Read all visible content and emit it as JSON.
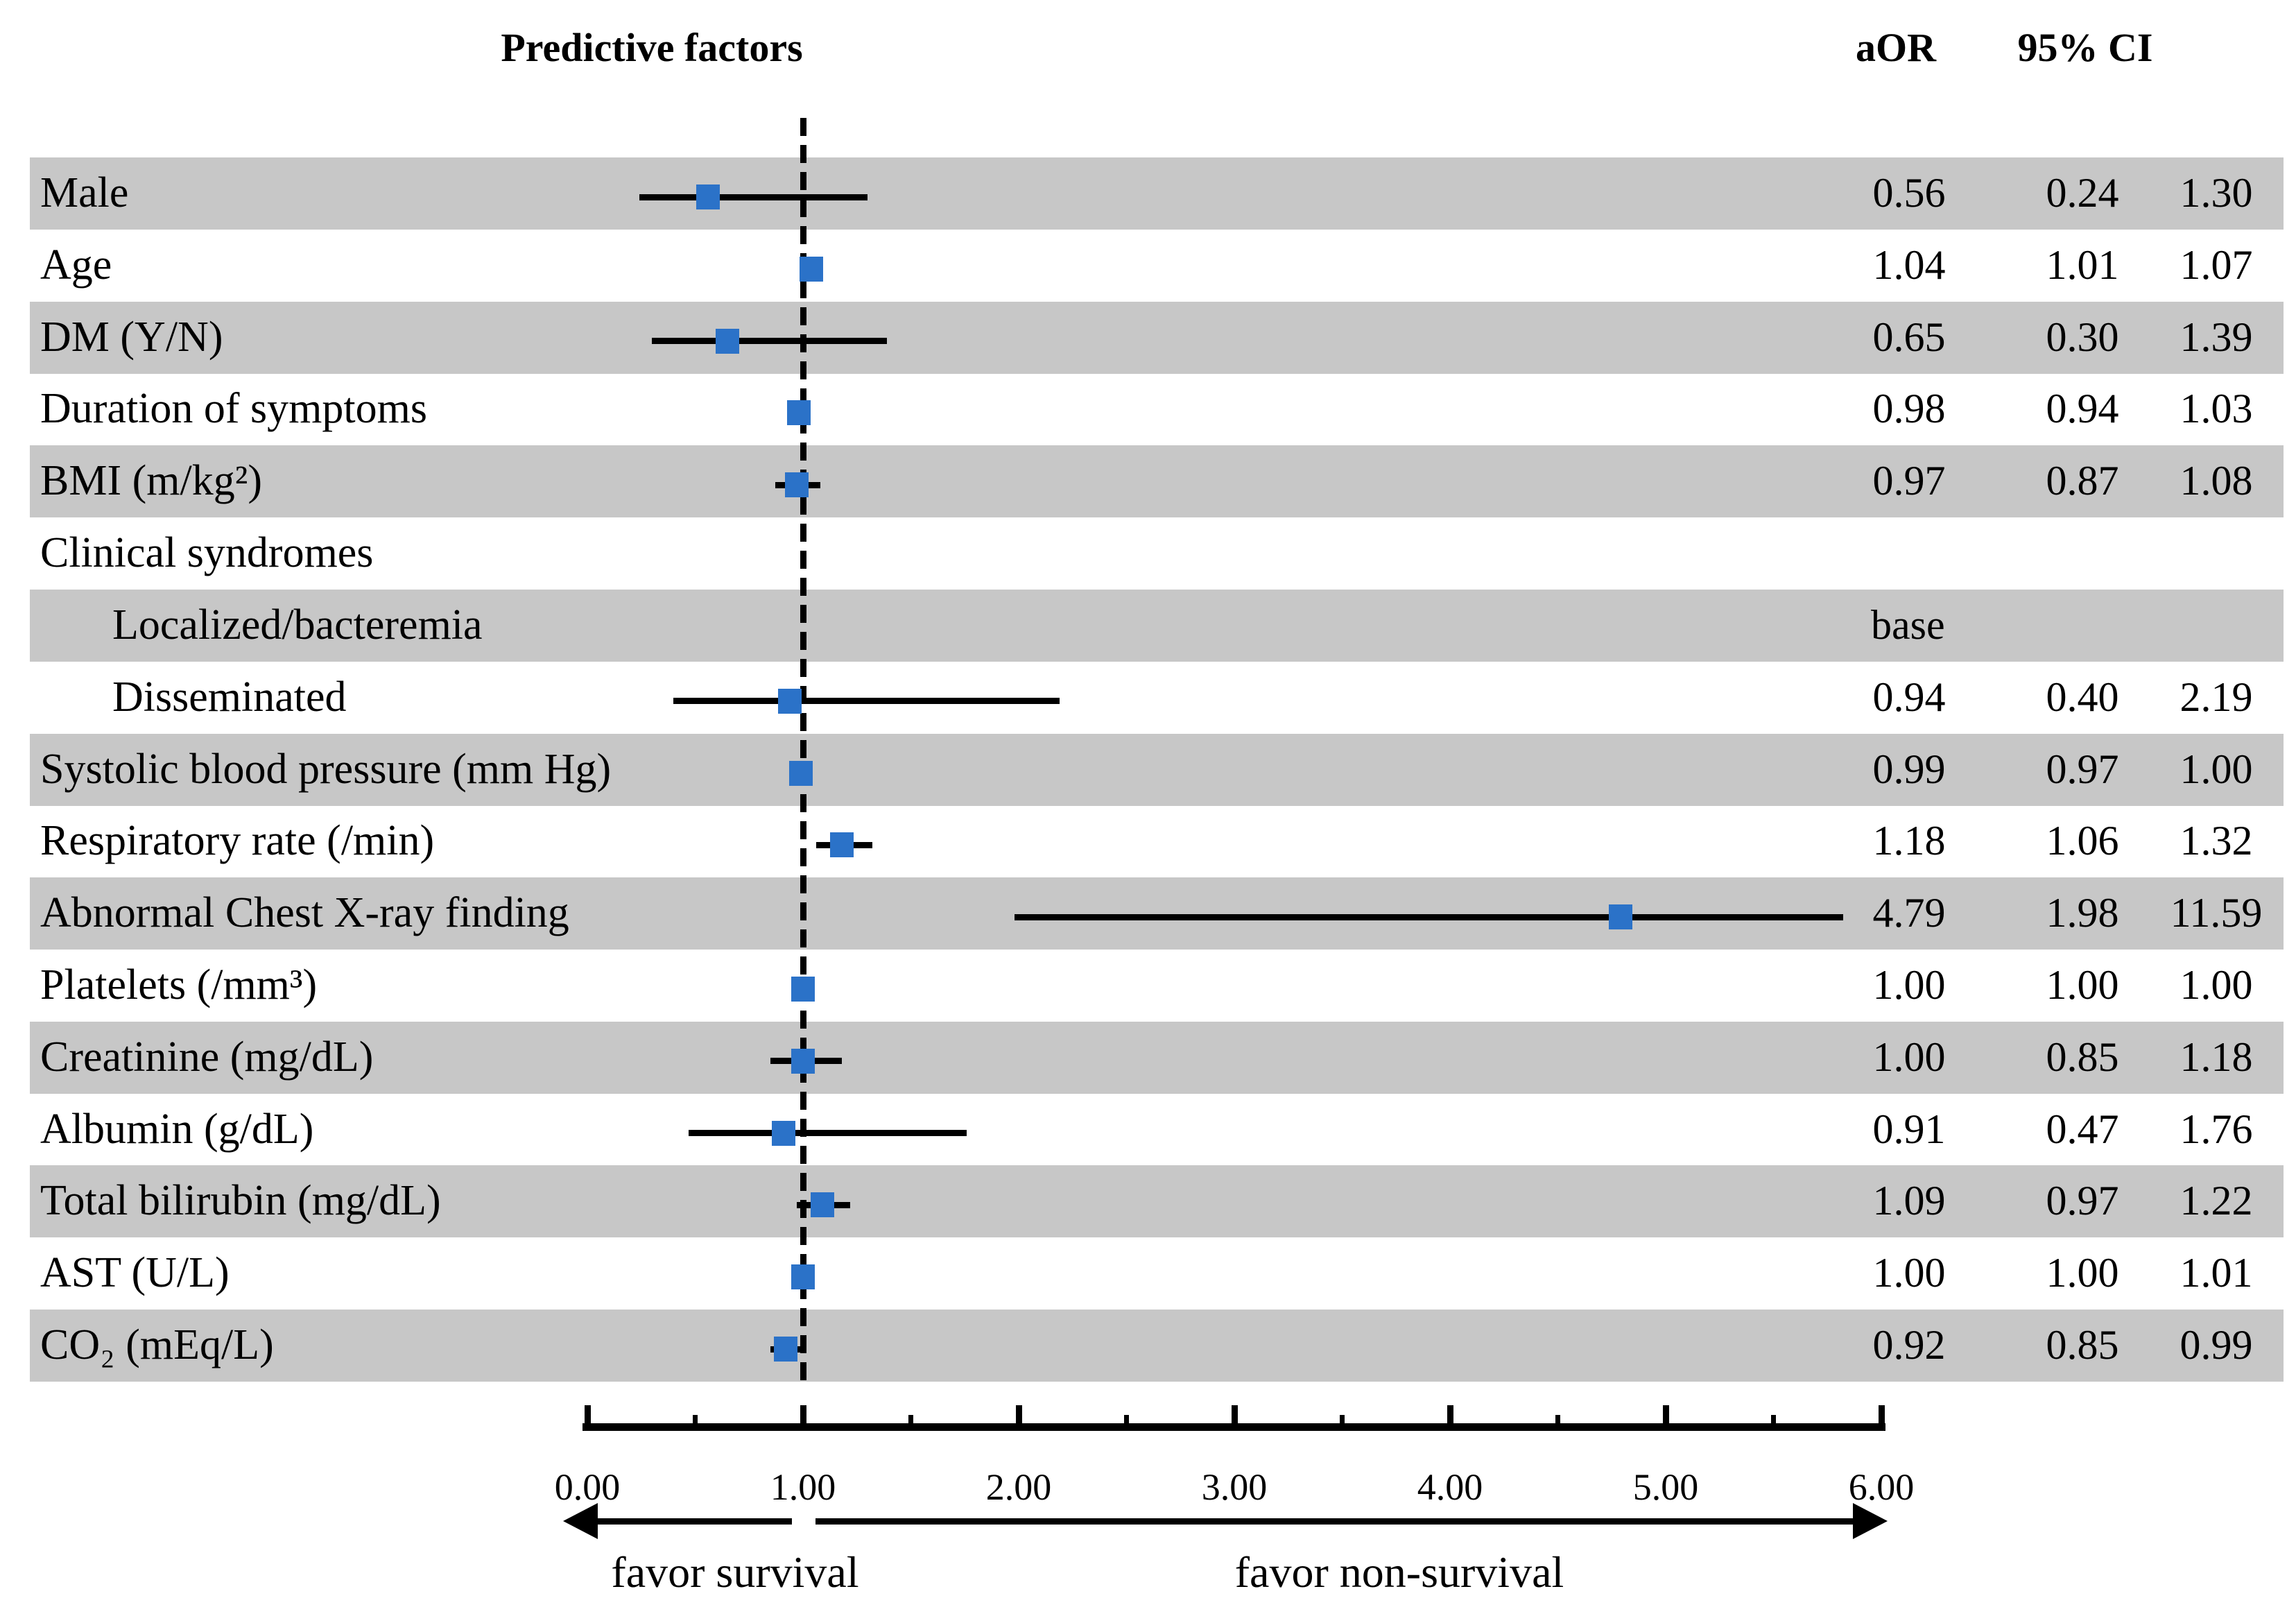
{
  "title": "Predictive factors",
  "columns": {
    "aor": "aOR",
    "ci": "95% CI"
  },
  "footer": {
    "left_arrow_label": "favor survival",
    "right_arrow_label": "favor non-survival"
  },
  "colors": {
    "band_gray": "#c7c7c7",
    "marker_blue": "#2b72c8",
    "line_black": "#000000"
  },
  "chart_data": {
    "type": "scatter",
    "variant": "forest-plot",
    "title": "Predictive factors",
    "xlabel": "",
    "ylabel": "",
    "legend": "none",
    "grid": false,
    "x_axis": {
      "min": 0,
      "max": 6,
      "tick_labels": [
        "0.00",
        "1.00",
        "2.00",
        "3.00",
        "4.00",
        "5.00",
        "6.00"
      ],
      "minor_tick_step": 0.5,
      "reference_line": 1.0
    },
    "rows": [
      {
        "label": "Male",
        "indent": false,
        "shaded": true,
        "aor_text": "0.56",
        "low_text": "0.24",
        "high_text": "1.30",
        "est": 0.56,
        "low": 0.24,
        "high": 1.3
      },
      {
        "label": "Age",
        "indent": false,
        "shaded": false,
        "aor_text": "1.04",
        "low_text": "1.01",
        "high_text": "1.07",
        "est": 1.04,
        "low": 1.01,
        "high": 1.07
      },
      {
        "label": "DM (Y/N)",
        "indent": false,
        "shaded": true,
        "aor_text": "0.65",
        "low_text": "0.30",
        "high_text": "1.39",
        "est": 0.65,
        "low": 0.3,
        "high": 1.39
      },
      {
        "label": "Duration of symptoms",
        "indent": false,
        "shaded": false,
        "aor_text": "0.98",
        "low_text": "0.94",
        "high_text": "1.03",
        "est": 0.98,
        "low": 0.94,
        "high": 1.03
      },
      {
        "label": "BMI (m/kg²)",
        "indent": false,
        "shaded": true,
        "aor_text": "0.97",
        "low_text": "0.87",
        "high_text": "1.08",
        "est": 0.97,
        "low": 0.87,
        "high": 1.08
      },
      {
        "label": "Clinical syndromes",
        "indent": false,
        "shaded": false,
        "aor_text": "",
        "low_text": "",
        "high_text": "",
        "est": null,
        "low": null,
        "high": null
      },
      {
        "label": "Localized/bacteremia",
        "indent": true,
        "shaded": true,
        "aor_text": "base",
        "low_text": "",
        "high_text": "",
        "est": null,
        "low": null,
        "high": null
      },
      {
        "label": "Disseminated",
        "indent": true,
        "shaded": false,
        "aor_text": "0.94",
        "low_text": "0.40",
        "high_text": "2.19",
        "est": 0.94,
        "low": 0.4,
        "high": 2.19
      },
      {
        "label": "Systolic blood pressure (mm Hg)",
        "indent": false,
        "shaded": true,
        "aor_text": "0.99",
        "low_text": "0.97",
        "high_text": "1.00",
        "est": 0.99,
        "low": 0.97,
        "high": 1.0
      },
      {
        "label": "Respiratory rate (/min)",
        "indent": false,
        "shaded": false,
        "aor_text": "1.18",
        "low_text": "1.06",
        "high_text": "1.32",
        "est": 1.18,
        "low": 1.06,
        "high": 1.32
      },
      {
        "label": "Abnormal Chest X-ray finding",
        "indent": false,
        "shaded": true,
        "aor_text": "4.79",
        "low_text": "1.98",
        "high_text": "11.59",
        "est": 4.79,
        "low": 1.98,
        "high": 11.59
      },
      {
        "label": "Platelets (/mm³)",
        "indent": false,
        "shaded": false,
        "aor_text": "1.00",
        "low_text": "1.00",
        "high_text": "1.00",
        "est": 1.0,
        "low": 1.0,
        "high": 1.0
      },
      {
        "label": "Creatinine (mg/dL)",
        "indent": false,
        "shaded": true,
        "aor_text": "1.00",
        "low_text": "0.85",
        "high_text": "1.18",
        "est": 1.0,
        "low": 0.85,
        "high": 1.18
      },
      {
        "label": "Albumin (g/dL)",
        "indent": false,
        "shaded": false,
        "aor_text": "0.91",
        "low_text": "0.47",
        "high_text": "1.76",
        "est": 0.91,
        "low": 0.47,
        "high": 1.76
      },
      {
        "label": "Total bilirubin (mg/dL)",
        "indent": false,
        "shaded": true,
        "aor_text": "1.09",
        "low_text": "0.97",
        "high_text": "1.22",
        "est": 1.09,
        "low": 0.97,
        "high": 1.22
      },
      {
        "label": "AST (U/L)",
        "indent": false,
        "shaded": false,
        "aor_text": "1.00",
        "low_text": "1.00",
        "high_text": "1.01",
        "est": 1.0,
        "low": 1.0,
        "high": 1.01
      },
      {
        "label": "CO₂ (mEq/L)",
        "indent": false,
        "shaded": true,
        "aor_text": "0.92",
        "low_text": "0.85",
        "high_text": "0.99",
        "est": 0.92,
        "low": 0.85,
        "high": 0.99
      }
    ]
  }
}
